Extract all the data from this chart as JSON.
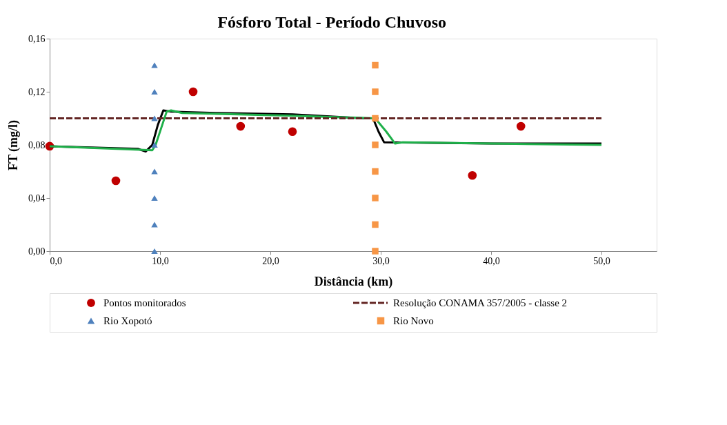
{
  "chart_data": {
    "type": "scatter",
    "title": "Fósforo Total - Período Chuvoso",
    "xlabel": "Distância (km)",
    "ylabel": "FT (mg/l)",
    "xlim": [
      0,
      55
    ],
    "xticks": [
      {
        "value": 0,
        "label": "0,0"
      },
      {
        "value": 10,
        "label": "10,0"
      },
      {
        "value": 20,
        "label": "20,0"
      },
      {
        "value": 30,
        "label": "30,0"
      },
      {
        "value": 40,
        "label": "40,0"
      },
      {
        "value": 50,
        "label": "50,0"
      }
    ],
    "ylim": [
      0,
      0.16
    ],
    "yticks": [
      {
        "value": 0,
        "label": "0,00"
      },
      {
        "value": 0.04,
        "label": "0,04"
      },
      {
        "value": 0.08,
        "label": "0,08"
      },
      {
        "value": 0.12,
        "label": "0,12"
      },
      {
        "value": 0.16,
        "label": "0,16"
      }
    ],
    "grid": false,
    "legend": "bottom",
    "series": [
      {
        "name": "Pontos monitorados",
        "marker": "circle",
        "color": "#c00000",
        "x": [
          0,
          6,
          13,
          17.3,
          22,
          38.3,
          42.7
        ],
        "values": [
          0.079,
          0.053,
          0.12,
          0.094,
          0.09,
          0.057,
          0.094
        ]
      },
      {
        "type": "line",
        "marker": "none",
        "line_style": "solid",
        "color": "#000000",
        "x": [
          0,
          8,
          8.7,
          9.3,
          9.8,
          10.3,
          11,
          15,
          22,
          28.5,
          29.3,
          29.8,
          30.3,
          40,
          50
        ],
        "values": [
          0.079,
          0.077,
          0.075,
          0.08,
          0.095,
          0.106,
          0.105,
          0.104,
          0.103,
          0.1,
          0.1,
          0.09,
          0.082,
          0.081,
          0.081
        ]
      },
      {
        "type": "line",
        "marker": "none",
        "line_style": "solid",
        "color": "#1fb04a",
        "x": [
          0,
          9.3,
          9.6,
          10.2,
          10.6,
          11,
          12,
          22,
          29.5,
          30.5,
          31.3,
          32,
          40,
          50
        ],
        "values": [
          0.079,
          0.076,
          0.08,
          0.095,
          0.105,
          0.106,
          0.104,
          0.102,
          0.1,
          0.09,
          0.081,
          0.082,
          0.081,
          0.08
        ]
      },
      {
        "name": "Resolução CONAMA 357/2005 - classe 2",
        "type": "line",
        "marker": "none",
        "line_style": "dashed",
        "color": "#632523",
        "x": [
          0,
          50
        ],
        "values": [
          0.1,
          0.1
        ]
      },
      {
        "name": "Rio Xopotó",
        "marker": "triangle",
        "color": "#4f81bd",
        "x": [
          9.5,
          9.5,
          9.5,
          9.5,
          9.5,
          9.5,
          9.5,
          9.5
        ],
        "values": [
          0,
          0.02,
          0.04,
          0.06,
          0.08,
          0.1,
          0.12,
          0.14
        ]
      },
      {
        "name": "Rio Novo",
        "marker": "square",
        "color": "#f79646",
        "x": [
          29.5,
          29.5,
          29.5,
          29.5,
          29.5,
          29.5,
          29.5,
          29.5
        ],
        "values": [
          0,
          0.02,
          0.04,
          0.06,
          0.08,
          0.1,
          0.12,
          0.14
        ]
      }
    ]
  }
}
